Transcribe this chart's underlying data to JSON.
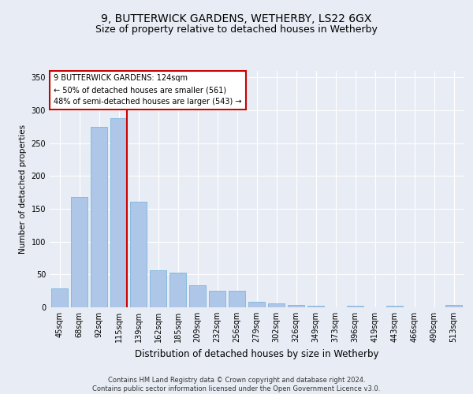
{
  "title": "9, BUTTERWICK GARDENS, WETHERBY, LS22 6GX",
  "subtitle": "Size of property relative to detached houses in Wetherby",
  "xlabel": "Distribution of detached houses by size in Wetherby",
  "ylabel": "Number of detached properties",
  "categories": [
    "45sqm",
    "68sqm",
    "92sqm",
    "115sqm",
    "139sqm",
    "162sqm",
    "185sqm",
    "209sqm",
    "232sqm",
    "256sqm",
    "279sqm",
    "302sqm",
    "326sqm",
    "349sqm",
    "373sqm",
    "396sqm",
    "419sqm",
    "443sqm",
    "466sqm",
    "490sqm",
    "513sqm"
  ],
  "values": [
    29,
    168,
    275,
    288,
    161,
    57,
    53,
    34,
    25,
    25,
    9,
    6,
    4,
    2,
    0,
    2,
    0,
    3,
    0,
    0,
    4
  ],
  "bar_color": "#aec6e8",
  "bar_edge_color": "#6baed6",
  "highlight_index": 3,
  "highlight_line_color": "#cc0000",
  "annotation_text": "9 BUTTERWICK GARDENS: 124sqm\n← 50% of detached houses are smaller (561)\n48% of semi-detached houses are larger (543) →",
  "annotation_box_color": "#ffffff",
  "annotation_box_edge_color": "#cc0000",
  "ylim": [
    0,
    360
  ],
  "yticks": [
    0,
    50,
    100,
    150,
    200,
    250,
    300,
    350
  ],
  "background_color": "#e8edf5",
  "plot_background_color": "#e8edf5",
  "footer_text": "Contains HM Land Registry data © Crown copyright and database right 2024.\nContains public sector information licensed under the Open Government Licence v3.0.",
  "title_fontsize": 10,
  "subtitle_fontsize": 9,
  "xlabel_fontsize": 8.5,
  "ylabel_fontsize": 7.5,
  "tick_fontsize": 7,
  "annotation_fontsize": 7,
  "footer_fontsize": 6
}
